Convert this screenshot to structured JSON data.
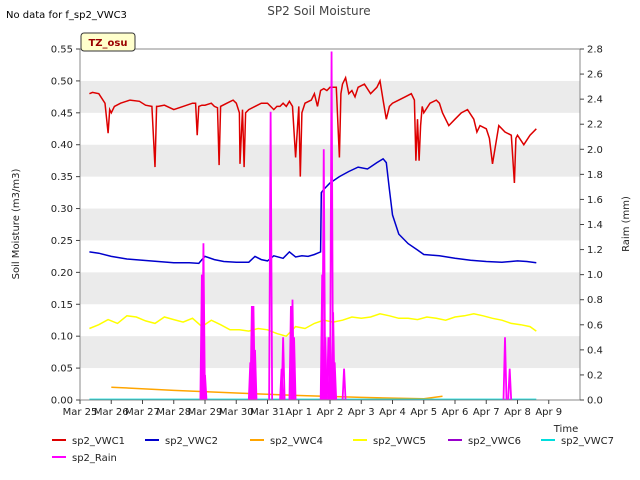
{
  "header": {
    "nodata_text": "No data for f_sp2_VWC3",
    "badge_text": "TZ_osu"
  },
  "chart_data": {
    "type": "line",
    "title": "SP2 Soil Moisture",
    "xlabel": "Time",
    "ylabel": "Soil Moisture (m3/m3)",
    "y2label": "Raim (mm)",
    "xlim": [
      0,
      16
    ],
    "ylim": [
      0,
      0.55
    ],
    "y2lim": [
      0,
      2.8
    ],
    "x_ticks": [
      "Mar 25",
      "Mar 26",
      "Mar 27",
      "Mar 28",
      "Mar 29",
      "Mar 30",
      "Mar 31",
      "Apr 1",
      "Apr 2",
      "Apr 3",
      "Apr 4",
      "Apr 5",
      "Apr 6",
      "Apr 7",
      "Apr 8",
      "Apr 9"
    ],
    "y_ticks": [
      "0.00",
      "0.05",
      "0.10",
      "0.15",
      "0.20",
      "0.25",
      "0.30",
      "0.35",
      "0.40",
      "0.45",
      "0.50",
      "0.55"
    ],
    "y2_ticks": [
      "0.0",
      "0.2",
      "0.4",
      "0.6",
      "0.8",
      "1.0",
      "1.2",
      "1.4",
      "1.6",
      "1.8",
      "2.0",
      "2.2",
      "2.4",
      "2.6",
      "2.8"
    ],
    "grid": "horizontal bands",
    "legend_position": "bottom",
    "series": [
      {
        "name": "sp2_VWC1",
        "color": "#dd0000",
        "axis": "left",
        "x": [
          0.3,
          0.4,
          0.6,
          0.8,
          0.9,
          0.95,
          1.0,
          1.1,
          1.3,
          1.6,
          1.9,
          2.1,
          2.3,
          2.4,
          2.45,
          2.5,
          2.7,
          3.0,
          3.3,
          3.6,
          3.7,
          3.75,
          3.8,
          3.9,
          4.0,
          4.2,
          4.3,
          4.4,
          4.45,
          4.5,
          4.7,
          4.9,
          5.0,
          5.1,
          5.12,
          5.2,
          5.25,
          5.3,
          5.4,
          5.6,
          5.8,
          6.0,
          6.2,
          6.3,
          6.35,
          6.4,
          6.5,
          6.6,
          6.7,
          6.8,
          6.9,
          7.0,
          7.05,
          7.1,
          7.2,
          7.4,
          7.5,
          7.6,
          7.7,
          7.8,
          7.9,
          8.0,
          8.2,
          8.3,
          8.35,
          8.4,
          8.5,
          8.6,
          8.7,
          8.75,
          8.8,
          8.9,
          9.1,
          9.3,
          9.5,
          9.6,
          9.7,
          9.8,
          9.9,
          10.0,
          10.2,
          10.4,
          10.6,
          10.7,
          10.75,
          10.8,
          10.85,
          10.9,
          10.95,
          11.0,
          11.2,
          11.4,
          11.5,
          11.6,
          11.8,
          12.0,
          12.2,
          12.4,
          12.6,
          12.7,
          12.8,
          13.0,
          13.1,
          13.2,
          13.4,
          13.6,
          13.8,
          13.9,
          13.95,
          14.0,
          14.2,
          14.4,
          14.6
        ],
        "values": [
          0.48,
          0.482,
          0.48,
          0.465,
          0.418,
          0.455,
          0.45,
          0.46,
          0.465,
          0.47,
          0.468,
          0.462,
          0.46,
          0.365,
          0.46,
          0.46,
          0.462,
          0.455,
          0.46,
          0.465,
          0.465,
          0.415,
          0.46,
          0.462,
          0.462,
          0.465,
          0.46,
          0.458,
          0.368,
          0.46,
          0.465,
          0.47,
          0.465,
          0.45,
          0.37,
          0.455,
          0.365,
          0.45,
          0.455,
          0.46,
          0.465,
          0.465,
          0.455,
          0.46,
          0.46,
          0.46,
          0.465,
          0.46,
          0.468,
          0.46,
          0.38,
          0.46,
          0.35,
          0.45,
          0.465,
          0.47,
          0.48,
          0.46,
          0.485,
          0.488,
          0.485,
          0.49,
          0.49,
          0.38,
          0.48,
          0.495,
          0.505,
          0.48,
          0.485,
          0.48,
          0.475,
          0.49,
          0.495,
          0.48,
          0.49,
          0.5,
          0.47,
          0.44,
          0.46,
          0.465,
          0.47,
          0.475,
          0.48,
          0.47,
          0.375,
          0.44,
          0.375,
          0.43,
          0.46,
          0.45,
          0.465,
          0.47,
          0.465,
          0.45,
          0.43,
          0.44,
          0.45,
          0.455,
          0.44,
          0.42,
          0.43,
          0.425,
          0.41,
          0.37,
          0.43,
          0.42,
          0.415,
          0.34,
          0.41,
          0.415,
          0.4,
          0.415,
          0.425
        ]
      },
      {
        "name": "sp2_VWC2",
        "color": "#0000cc",
        "axis": "left",
        "x": [
          0.3,
          0.6,
          1.0,
          1.5,
          2.0,
          2.5,
          3.0,
          3.5,
          3.8,
          3.9,
          4.0,
          4.3,
          4.6,
          5.0,
          5.4,
          5.6,
          5.8,
          6.0,
          6.2,
          6.5,
          6.7,
          6.9,
          7.1,
          7.3,
          7.5,
          7.7,
          7.72,
          7.8,
          8.0,
          8.3,
          8.6,
          8.9,
          9.2,
          9.5,
          9.7,
          9.8,
          9.9,
          10.0,
          10.2,
          10.5,
          10.8,
          11.0,
          11.5,
          12.0,
          12.5,
          13.0,
          13.5,
          14.0,
          14.3,
          14.6
        ],
        "values": [
          0.232,
          0.23,
          0.225,
          0.221,
          0.219,
          0.217,
          0.215,
          0.215,
          0.214,
          0.22,
          0.225,
          0.22,
          0.217,
          0.216,
          0.216,
          0.225,
          0.22,
          0.218,
          0.226,
          0.222,
          0.232,
          0.224,
          0.226,
          0.225,
          0.228,
          0.232,
          0.325,
          0.33,
          0.34,
          0.35,
          0.358,
          0.365,
          0.362,
          0.372,
          0.378,
          0.372,
          0.33,
          0.29,
          0.26,
          0.245,
          0.235,
          0.228,
          0.226,
          0.222,
          0.219,
          0.217,
          0.216,
          0.218,
          0.217,
          0.215
        ]
      },
      {
        "name": "sp2_VWC4",
        "color": "#ffa500",
        "axis": "left",
        "x": [
          1.0,
          3.0,
          5.0,
          7.0,
          9.0,
          10.0,
          11.0,
          11.6
        ],
        "values": [
          0.02,
          0.015,
          0.011,
          0.007,
          0.004,
          0.003,
          0.002,
          0.006
        ]
      },
      {
        "name": "sp2_VWC5",
        "color": "#ffff00",
        "axis": "left",
        "x": [
          0.3,
          0.6,
          0.9,
          1.2,
          1.5,
          1.8,
          2.1,
          2.4,
          2.7,
          3.0,
          3.3,
          3.6,
          3.9,
          4.2,
          4.5,
          4.8,
          5.1,
          5.4,
          5.7,
          6.0,
          6.3,
          6.6,
          6.9,
          7.2,
          7.5,
          7.8,
          8.1,
          8.4,
          8.7,
          9.0,
          9.3,
          9.6,
          9.9,
          10.2,
          10.5,
          10.8,
          11.1,
          11.4,
          11.7,
          12.0,
          12.3,
          12.6,
          12.9,
          13.2,
          13.5,
          13.8,
          14.1,
          14.4,
          14.6
        ],
        "values": [
          0.112,
          0.118,
          0.126,
          0.12,
          0.132,
          0.13,
          0.124,
          0.12,
          0.13,
          0.126,
          0.122,
          0.128,
          0.115,
          0.125,
          0.118,
          0.11,
          0.11,
          0.108,
          0.112,
          0.11,
          0.104,
          0.1,
          0.115,
          0.112,
          0.12,
          0.125,
          0.122,
          0.125,
          0.13,
          0.128,
          0.13,
          0.135,
          0.132,
          0.128,
          0.128,
          0.126,
          0.13,
          0.128,
          0.125,
          0.13,
          0.132,
          0.135,
          0.132,
          0.128,
          0.125,
          0.12,
          0.118,
          0.115,
          0.108
        ]
      },
      {
        "name": "sp2_VWC6",
        "color": "#9900cc",
        "axis": "left",
        "x": [],
        "values": []
      },
      {
        "name": "sp2_VWC7",
        "color": "#00dddd",
        "axis": "left",
        "x": [
          0.3,
          14.6
        ],
        "values": [
          0.001,
          0.001
        ]
      },
      {
        "name": "sp2_Rain",
        "color": "#ff00ff",
        "axis": "right",
        "x": [
          3.9,
          3.92,
          3.95,
          4.0,
          5.45,
          5.5,
          5.55,
          5.6,
          6.1,
          6.45,
          6.5,
          6.75,
          6.8,
          6.85,
          7.75,
          7.8,
          7.85,
          7.95,
          8.0,
          8.05,
          8.1,
          8.15,
          8.45,
          13.6,
          13.75
        ],
        "values": [
          1.0,
          0.9,
          1.25,
          0.2,
          0.3,
          0.75,
          0.75,
          0.4,
          2.3,
          0.25,
          0.5,
          0.75,
          0.8,
          0.5,
          1.0,
          2.0,
          0.5,
          0.5,
          0.5,
          2.78,
          0.7,
          0.3,
          0.25,
          0.5,
          0.25
        ]
      }
    ]
  }
}
